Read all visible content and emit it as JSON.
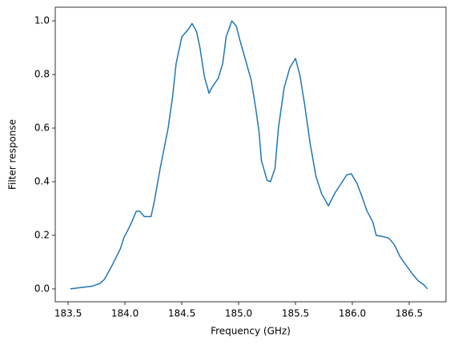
{
  "chart_data": {
    "type": "line",
    "xlabel": "Frequency (GHz)",
    "ylabel": "Filter response",
    "x": [
      183.52,
      183.61,
      183.71,
      183.78,
      183.82,
      183.89,
      183.96,
      183.99,
      184.05,
      184.1,
      184.13,
      184.17,
      184.23,
      184.26,
      184.31,
      184.38,
      184.42,
      184.45,
      184.5,
      184.56,
      184.59,
      184.63,
      184.66,
      184.7,
      184.74,
      184.77,
      184.82,
      184.86,
      184.89,
      184.94,
      184.98,
      185.01,
      185.06,
      185.11,
      185.15,
      185.18,
      185.2,
      185.25,
      185.28,
      185.32,
      185.35,
      185.4,
      185.45,
      185.5,
      185.54,
      185.58,
      185.63,
      185.68,
      185.73,
      185.79,
      185.85,
      185.89,
      185.95,
      185.99,
      186.04,
      186.08,
      186.13,
      186.18,
      186.21,
      186.27,
      186.32,
      186.37,
      186.42,
      186.47,
      186.53,
      186.58,
      186.63,
      186.66
    ],
    "series": [
      {
        "color": "#1f77b4",
        "values": [
          0,
          0.005,
          0.01,
          0.02,
          0.036,
          0.09,
          0.15,
          0.19,
          0.24,
          0.29,
          0.29,
          0.27,
          0.27,
          0.33,
          0.45,
          0.6,
          0.72,
          0.84,
          0.94,
          0.97,
          0.99,
          0.96,
          0.9,
          0.79,
          0.73,
          0.755,
          0.785,
          0.84,
          0.94,
          1.0,
          0.98,
          0.93,
          0.855,
          0.78,
          0.675,
          0.585,
          0.48,
          0.405,
          0.4,
          0.45,
          0.6,
          0.75,
          0.825,
          0.86,
          0.795,
          0.69,
          0.54,
          0.42,
          0.355,
          0.31,
          0.36,
          0.385,
          0.425,
          0.43,
          0.395,
          0.35,
          0.29,
          0.25,
          0.2,
          0.195,
          0.19,
          0.165,
          0.12,
          0.09,
          0.055,
          0.03,
          0.015,
          0
        ]
      }
    ],
    "xlim": [
      183.387,
      186.824
    ],
    "ylim": [
      -0.048,
      1.051
    ],
    "xticks": [
      183.5,
      {
        "value": 184,
        "label": "184.0"
      },
      184.5,
      {
        "value": 185,
        "label": "185.0"
      },
      185.5,
      {
        "value": 186,
        "label": "186.0"
      },
      186.5
    ],
    "yticks": [
      {
        "value": 0,
        "label": "0.0"
      },
      0.2,
      0.4,
      0.6,
      0.8,
      {
        "value": 1,
        "label": "1.0"
      }
    ]
  }
}
